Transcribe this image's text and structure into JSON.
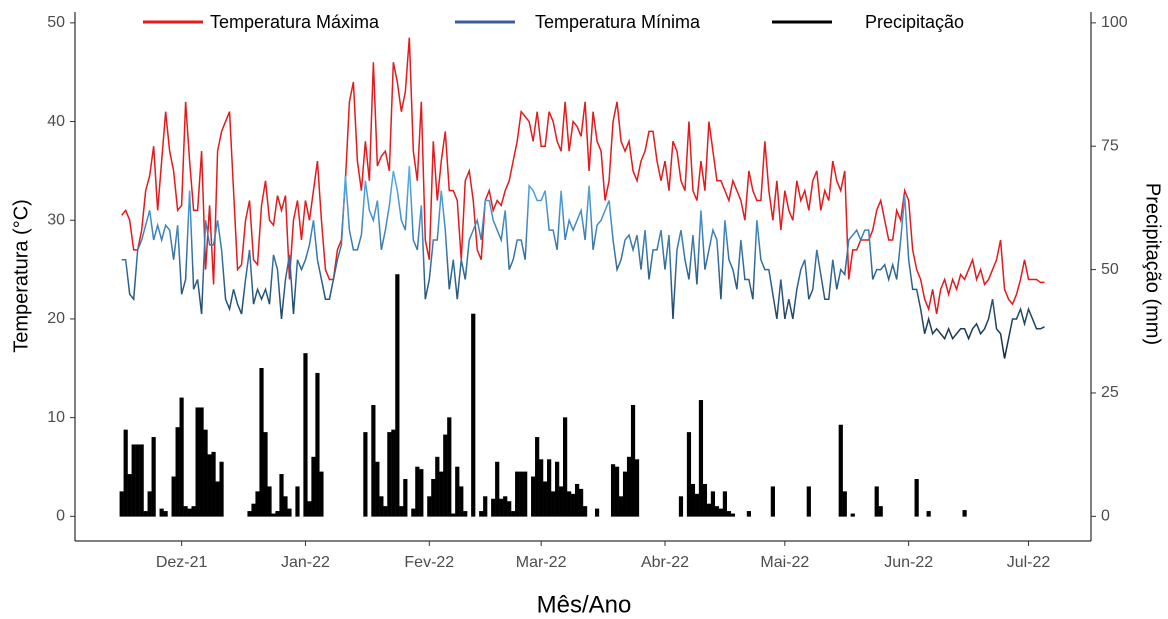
{
  "chart_data": {
    "type": "line",
    "x_label": "Mês/Ano",
    "y_label": "Temperatura (°C)",
    "y2_label": "Precipitação (mm)",
    "legend": "top",
    "ylim": [
      -2.5,
      51.1
    ],
    "yticks": [
      0,
      10,
      20,
      30,
      40,
      50
    ],
    "y2lim": [
      -5,
      102.2
    ],
    "y2ticks": [
      0,
      25,
      50,
      75,
      100
    ],
    "categories": [
      null,
      null,
      null,
      null,
      null,
      null,
      null,
      null,
      null,
      null,
      null,
      null,
      null,
      null,
      null,
      "Dez-21",
      null,
      null,
      null,
      null,
      null,
      null,
      null,
      null,
      null,
      null,
      null,
      null,
      null,
      null,
      null,
      null,
      null,
      null,
      null,
      null,
      null,
      null,
      null,
      null,
      null,
      null,
      null,
      null,
      null,
      null,
      "Jan-22",
      null,
      null,
      null,
      null,
      null,
      null,
      null,
      null,
      null,
      null,
      null,
      null,
      null,
      null,
      null,
      null,
      null,
      null,
      null,
      null,
      null,
      null,
      null,
      null,
      null,
      null,
      null,
      null,
      null,
      null,
      "Fev-22",
      null,
      null,
      null,
      null,
      null,
      null,
      null,
      null,
      null,
      null,
      null,
      null,
      null,
      null,
      null,
      null,
      null,
      null,
      null,
      null,
      null,
      null,
      null,
      null,
      null,
      null,
      null,
      "Mar-22",
      null,
      null,
      null,
      null,
      null,
      null,
      null,
      null,
      null,
      null,
      null,
      null,
      null,
      null,
      null,
      null,
      null,
      null,
      null,
      null,
      null,
      null,
      null,
      null,
      null,
      null,
      null,
      null,
      null,
      null,
      "Abr-22",
      null,
      null,
      null,
      null,
      null,
      null,
      null,
      null,
      null,
      null,
      null,
      null,
      null,
      null,
      null,
      null,
      null,
      null,
      null,
      null,
      null,
      null,
      null,
      null,
      null,
      null,
      null,
      null,
      null,
      "Mai-22",
      null,
      null,
      null,
      null,
      null,
      null,
      null,
      null,
      null,
      null,
      null,
      null,
      null,
      null,
      null,
      null,
      null,
      null,
      null,
      null,
      null,
      null,
      null,
      null,
      null,
      null,
      null,
      null,
      null,
      null,
      "Jun-22",
      null,
      null,
      null,
      null,
      null,
      null,
      null,
      null,
      null,
      null,
      null,
      null,
      null,
      null,
      null,
      null,
      null,
      null,
      null,
      null,
      null,
      null,
      null,
      null,
      null,
      null,
      null,
      null,
      null,
      "Jul-22",
      null,
      null,
      null,
      null
    ],
    "series": [
      {
        "name": "Temperatura Máxima",
        "color": "#e41a1c",
        "values": [
          30.5,
          31,
          30,
          27,
          27,
          29,
          33,
          34.5,
          37.5,
          31,
          36,
          41,
          37,
          35,
          31,
          31.5,
          42,
          36,
          31,
          31,
          37,
          25,
          31.5,
          23.5,
          37,
          39,
          40,
          41,
          33,
          25,
          25.5,
          30,
          32,
          26,
          25.5,
          31.5,
          34,
          30,
          29.5,
          32.5,
          31,
          32.5,
          24,
          30,
          32,
          28,
          32,
          30,
          33,
          36,
          30,
          25,
          24,
          24,
          27,
          28,
          34,
          42,
          44,
          36,
          33,
          38,
          34,
          46,
          35.5,
          36.5,
          37,
          35,
          46,
          44,
          41,
          43,
          48.5,
          37,
          34,
          42,
          28,
          26,
          38,
          32,
          36,
          39,
          33,
          33,
          32,
          26,
          34,
          35,
          32,
          27,
          26,
          32,
          33,
          31,
          32,
          31.5,
          33,
          34,
          36,
          38,
          41,
          40.5,
          40,
          38,
          41,
          37.5,
          37.5,
          41,
          40,
          38,
          37,
          42,
          37,
          40,
          39.5,
          38.5,
          42,
          35,
          41,
          38,
          37,
          32,
          34,
          40,
          42,
          38,
          37,
          38,
          35,
          34,
          36,
          37,
          39,
          39,
          36,
          34,
          36,
          33,
          38,
          37,
          34,
          33,
          40,
          33,
          32,
          36,
          33,
          40,
          37,
          34,
          34,
          33,
          32,
          34,
          33,
          32,
          30,
          35,
          33,
          32,
          32,
          38,
          33,
          30,
          34,
          29,
          33,
          31,
          30,
          34,
          32,
          33,
          31,
          34,
          35,
          31,
          33,
          32,
          36,
          34,
          33,
          35,
          24,
          27,
          27,
          28,
          28,
          28,
          29,
          31,
          32,
          30,
          28,
          28,
          31,
          30,
          33,
          32,
          27,
          25,
          24,
          22,
          21,
          23,
          20.5,
          23,
          24,
          22.5,
          24,
          23,
          24.5,
          24,
          25,
          26,
          24,
          25,
          23.5,
          24,
          25,
          26,
          28,
          23,
          22,
          21.5,
          22.5,
          24,
          26,
          24,
          24,
          24,
          23.7,
          23.7
        ]
      },
      {
        "name": "Temperatura Mínima",
        "color": "#3b5d9e",
        "color_low": "#132b43",
        "color_high": "#56b1f7",
        "values": [
          26,
          26,
          22.5,
          22,
          27,
          28,
          29.5,
          31,
          28,
          29.5,
          28,
          29.5,
          29,
          26,
          29.5,
          22.5,
          24,
          33,
          23,
          24,
          20.5,
          30,
          27.5,
          27.5,
          30,
          27,
          22,
          21,
          23,
          21.5,
          20.5,
          24,
          27,
          21.5,
          23,
          22,
          23,
          21.5,
          26.5,
          25,
          20,
          24,
          26.5,
          20.5,
          26,
          25,
          26,
          27.5,
          30,
          26,
          24,
          22,
          22,
          24,
          26,
          27.5,
          34.5,
          29,
          27,
          27,
          28.5,
          34,
          31,
          30,
          32,
          27,
          29,
          31.5,
          35,
          33,
          30,
          29,
          35.5,
          28,
          27,
          31.5,
          22,
          24,
          28,
          28,
          33,
          29,
          23,
          26,
          22,
          26,
          24,
          28,
          29,
          30,
          28,
          32,
          32,
          30,
          29,
          28,
          31,
          25,
          26,
          28,
          28,
          26,
          33.5,
          33,
          32,
          32,
          33,
          29,
          29,
          27,
          33,
          28,
          30,
          29,
          30,
          31,
          28,
          33.5,
          27,
          29.5,
          30,
          31,
          32,
          28,
          25,
          26,
          28,
          28.5,
          27,
          28.5,
          25,
          29,
          24,
          27,
          27,
          29,
          25,
          28.5,
          20,
          27,
          29,
          26,
          24,
          28.5,
          23.5,
          31,
          25,
          27,
          29,
          28,
          22,
          30,
          26,
          25,
          23,
          28,
          24,
          24,
          22,
          30,
          26,
          25,
          25,
          22.5,
          20,
          24,
          20,
          22,
          20,
          23,
          25,
          26,
          22,
          23,
          27,
          24.5,
          22,
          22,
          26,
          23,
          25,
          24.5,
          28,
          28.5,
          29,
          28,
          29,
          29,
          24,
          25,
          25,
          25.5,
          24,
          25.5,
          24,
          28,
          32.5,
          26,
          23,
          23,
          21,
          18.5,
          20,
          18.5,
          19,
          18.5,
          18,
          19,
          18,
          18.5,
          19,
          19,
          18,
          19,
          19.5,
          18.5,
          19,
          20,
          22,
          19,
          18.5,
          16,
          18,
          20,
          20,
          21,
          19.5,
          21,
          20,
          19,
          19,
          19.2
        ]
      },
      {
        "name": "Precipitação",
        "color": "#000000",
        "type": "bar",
        "axis": "y2",
        "values": [
          5,
          17.5,
          8.5,
          14.5,
          14.5,
          14.5,
          1,
          5,
          16,
          0,
          1.5,
          1,
          0,
          8,
          18,
          24,
          2,
          1.5,
          2,
          22,
          22,
          17.5,
          12.5,
          13,
          7,
          11,
          0,
          0,
          0,
          0,
          0,
          0,
          1,
          2.5,
          5,
          30,
          17,
          6,
          0.5,
          1,
          8.5,
          4,
          1.5,
          0,
          6,
          0,
          33,
          3,
          12,
          29,
          9,
          0,
          0,
          0,
          0,
          0,
          0,
          0,
          0,
          0,
          0,
          17,
          0,
          22.5,
          11,
          4,
          2,
          17,
          17.5,
          49,
          2,
          7.5,
          0,
          1.5,
          10,
          9.5,
          0,
          4,
          7.5,
          12,
          9,
          16.5,
          20,
          0.5,
          10,
          6,
          1,
          0,
          41,
          0,
          1,
          4,
          0,
          3.5,
          11,
          3.5,
          4,
          3,
          1,
          9,
          9,
          9,
          0,
          8,
          16,
          11.5,
          7,
          11.5,
          5,
          11,
          6,
          20,
          5,
          4.5,
          6.5,
          5.5,
          2,
          0,
          0,
          1.5,
          0,
          0,
          0,
          10.5,
          10,
          4,
          9,
          12,
          22.5,
          11.5,
          0,
          0,
          0,
          0,
          0,
          0,
          0,
          0,
          0,
          0,
          4,
          0,
          17,
          6.5,
          4.5,
          23.5,
          6.5,
          2.5,
          5,
          2,
          1.5,
          5,
          1,
          0.5,
          0,
          0,
          0,
          1,
          0,
          0,
          0,
          0,
          0,
          6,
          0,
          0,
          0,
          0,
          0,
          0,
          0,
          0,
          6,
          0,
          0,
          0,
          0,
          0,
          0,
          0,
          18.5,
          5,
          0,
          0.5,
          0,
          0,
          0,
          0,
          0,
          6,
          2,
          0,
          0,
          0,
          0,
          0,
          0,
          0,
          0,
          7.5,
          0,
          0,
          1,
          0,
          0,
          0,
          0,
          0,
          0,
          0,
          0,
          1.2,
          0,
          0,
          0,
          0,
          0,
          0,
          0,
          0,
          0,
          0,
          0,
          0,
          0,
          0,
          0,
          0,
          0,
          0,
          0,
          0
        ]
      }
    ]
  }
}
